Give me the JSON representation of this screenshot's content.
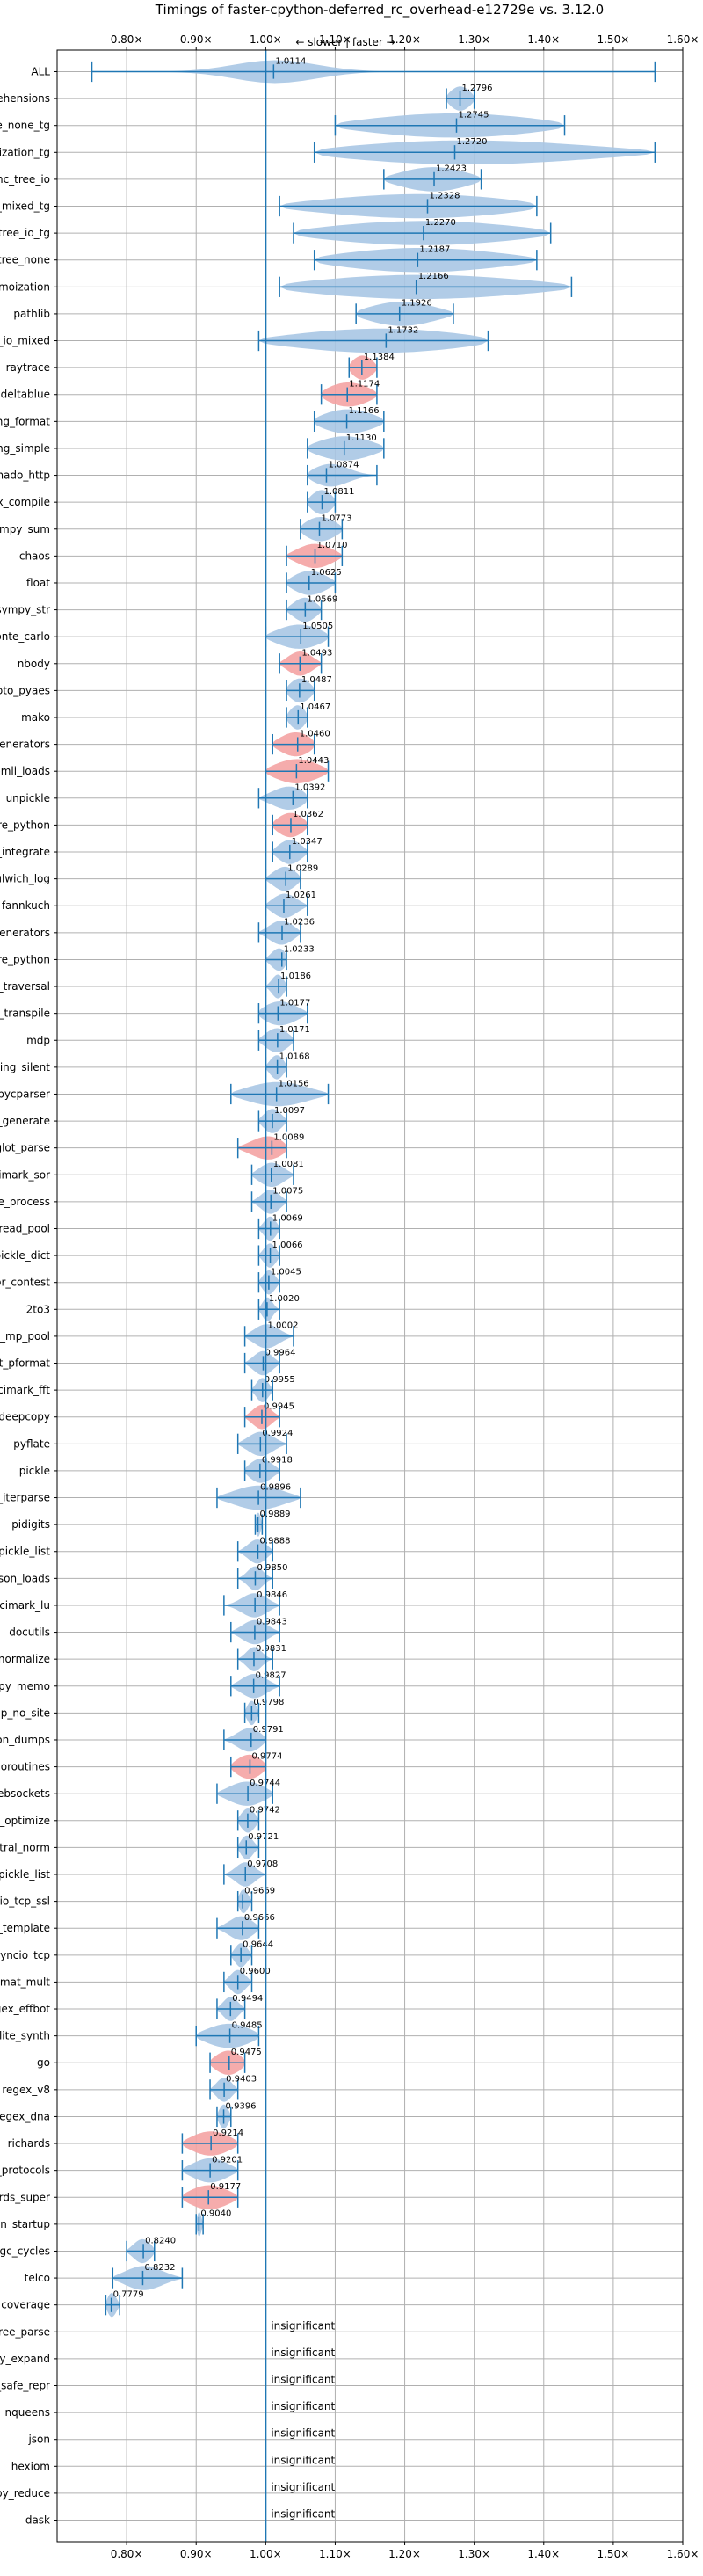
{
  "chart_data": {
    "type": "violin",
    "title": "Timings of faster-cpython-deferred_rc_overhead-e12729e vs. 3.12.0",
    "subtitle": "← slower | faster →",
    "xlim": [
      0.7,
      1.6
    ],
    "grid": true,
    "xticks": [
      {
        "v": 0.8,
        "label": "0.80×"
      },
      {
        "v": 0.9,
        "label": "0.90×"
      },
      {
        "v": 1.0,
        "label": "1.00×"
      },
      {
        "v": 1.1,
        "label": "1.10×"
      },
      {
        "v": 1.2,
        "label": "1.20×"
      },
      {
        "v": 1.3,
        "label": "1.30×"
      },
      {
        "v": 1.4,
        "label": "1.40×"
      },
      {
        "v": 1.5,
        "label": "1.50×"
      },
      {
        "v": 1.6,
        "label": "1.60×"
      }
    ],
    "insignificant_label": "insignificant",
    "benchmarks": [
      {
        "name": "ALL",
        "value": 1.0114,
        "label": "1.0114",
        "min": 0.75,
        "max": 1.56,
        "spread": 0.06,
        "color": "blue"
      },
      {
        "name": "comprehensions",
        "value": 1.2796,
        "label": "1.2796",
        "min": 1.26,
        "max": 1.3,
        "spread": 0.02,
        "color": "blue"
      },
      {
        "name": "async_tree_none_tg",
        "value": 1.2745,
        "label": "1.2745",
        "min": 1.1,
        "max": 1.43,
        "spread": 0.16,
        "color": "blue"
      },
      {
        "name": "async_tree_memoization_tg",
        "value": 1.272,
        "label": "1.2720",
        "min": 1.07,
        "max": 1.56,
        "spread": 0.22,
        "color": "blue"
      },
      {
        "name": "async_tree_io",
        "value": 1.2423,
        "label": "1.2423",
        "min": 1.17,
        "max": 1.31,
        "spread": 0.06,
        "color": "blue"
      },
      {
        "name": "async_tree_cpu_io_mixed_tg",
        "value": 1.2328,
        "label": "1.2328",
        "min": 1.02,
        "max": 1.39,
        "spread": 0.18,
        "color": "blue"
      },
      {
        "name": "async_tree_io_tg",
        "value": 1.227,
        "label": "1.2270",
        "min": 1.04,
        "max": 1.41,
        "spread": 0.18,
        "color": "blue"
      },
      {
        "name": "async_tree_none",
        "value": 1.2187,
        "label": "1.2187",
        "min": 1.07,
        "max": 1.39,
        "spread": 0.15,
        "color": "blue"
      },
      {
        "name": "async_tree_memoization",
        "value": 1.2166,
        "label": "1.2166",
        "min": 1.02,
        "max": 1.44,
        "spread": 0.2,
        "color": "blue"
      },
      {
        "name": "pathlib",
        "value": 1.1926,
        "label": "1.1926",
        "min": 1.13,
        "max": 1.27,
        "spread": 0.06,
        "color": "blue"
      },
      {
        "name": "async_tree_cpu_io_mixed",
        "value": 1.1732,
        "label": "1.1732",
        "min": 0.99,
        "max": 1.32,
        "spread": 0.16,
        "color": "blue"
      },
      {
        "name": "raytrace",
        "value": 1.1384,
        "label": "1.1384",
        "min": 1.12,
        "max": 1.16,
        "spread": 0.02,
        "color": "red"
      },
      {
        "name": "deltablue",
        "value": 1.1174,
        "label": "1.1174",
        "min": 1.08,
        "max": 1.16,
        "spread": 0.04,
        "color": "red"
      },
      {
        "name": "logging_format",
        "value": 1.1166,
        "label": "1.1166",
        "min": 1.07,
        "max": 1.17,
        "spread": 0.05,
        "color": "blue"
      },
      {
        "name": "logging_simple",
        "value": 1.113,
        "label": "1.1130",
        "min": 1.06,
        "max": 1.17,
        "spread": 0.05,
        "color": "blue"
      },
      {
        "name": "tornado_http",
        "value": 1.0874,
        "label": "1.0874",
        "min": 1.06,
        "max": 1.16,
        "spread": 0.03,
        "color": "blue"
      },
      {
        "name": "regex_compile",
        "value": 1.0811,
        "label": "1.0811",
        "min": 1.06,
        "max": 1.1,
        "spread": 0.02,
        "color": "blue"
      },
      {
        "name": "sympy_sum",
        "value": 1.0773,
        "label": "1.0773",
        "min": 1.05,
        "max": 1.11,
        "spread": 0.03,
        "color": "blue"
      },
      {
        "name": "chaos",
        "value": 1.071,
        "label": "1.0710",
        "min": 1.03,
        "max": 1.11,
        "spread": 0.03,
        "color": "red"
      },
      {
        "name": "float",
        "value": 1.0625,
        "label": "1.0625",
        "min": 1.03,
        "max": 1.1,
        "spread": 0.03,
        "color": "blue"
      },
      {
        "name": "sympy_str",
        "value": 1.0569,
        "label": "1.0569",
        "min": 1.03,
        "max": 1.08,
        "spread": 0.02,
        "color": "blue"
      },
      {
        "name": "scimark_monte_carlo",
        "value": 1.0505,
        "label": "1.0505",
        "min": 1.0,
        "max": 1.09,
        "spread": 0.04,
        "color": "blue"
      },
      {
        "name": "nbody",
        "value": 1.0493,
        "label": "1.0493",
        "min": 1.02,
        "max": 1.08,
        "spread": 0.02,
        "color": "red"
      },
      {
        "name": "crypto_pyaes",
        "value": 1.0487,
        "label": "1.0487",
        "min": 1.03,
        "max": 1.07,
        "spread": 0.02,
        "color": "blue"
      },
      {
        "name": "mako",
        "value": 1.0467,
        "label": "1.0467",
        "min": 1.03,
        "max": 1.06,
        "spread": 0.015,
        "color": "blue"
      },
      {
        "name": "generators",
        "value": 1.046,
        "label": "1.0460",
        "min": 1.01,
        "max": 1.07,
        "spread": 0.03,
        "color": "red"
      },
      {
        "name": "tomli_loads",
        "value": 1.0443,
        "label": "1.0443",
        "min": 1.0,
        "max": 1.09,
        "spread": 0.04,
        "color": "red"
      },
      {
        "name": "unpickle",
        "value": 1.0392,
        "label": "1.0392",
        "min": 0.99,
        "max": 1.06,
        "spread": 0.03,
        "color": "blue"
      },
      {
        "name": "pickle_pure_python",
        "value": 1.0362,
        "label": "1.0362",
        "min": 1.01,
        "max": 1.06,
        "spread": 0.025,
        "color": "red"
      },
      {
        "name": "sympy_integrate",
        "value": 1.0347,
        "label": "1.0347",
        "min": 1.01,
        "max": 1.06,
        "spread": 0.02,
        "color": "blue"
      },
      {
        "name": "dulwich_log",
        "value": 1.0289,
        "label": "1.0289",
        "min": 1.0,
        "max": 1.05,
        "spread": 0.02,
        "color": "blue"
      },
      {
        "name": "fannkuch",
        "value": 1.0261,
        "label": "1.0261",
        "min": 1.0,
        "max": 1.06,
        "spread": 0.02,
        "color": "blue"
      },
      {
        "name": "async_generators",
        "value": 1.0236,
        "label": "1.0236",
        "min": 0.99,
        "max": 1.05,
        "spread": 0.02,
        "color": "blue"
      },
      {
        "name": "unpickle_pure_python",
        "value": 1.0233,
        "label": "1.0233",
        "min": 1.0,
        "max": 1.03,
        "spread": 0.015,
        "color": "blue"
      },
      {
        "name": "gc_traversal",
        "value": 1.0186,
        "label": "1.0186",
        "min": 1.0,
        "max": 1.03,
        "spread": 0.01,
        "color": "blue"
      },
      {
        "name": "sqlglot_transpile",
        "value": 1.0177,
        "label": "1.0177",
        "min": 0.99,
        "max": 1.06,
        "spread": 0.03,
        "color": "blue"
      },
      {
        "name": "mdp",
        "value": 1.0171,
        "label": "1.0171",
        "min": 0.99,
        "max": 1.04,
        "spread": 0.02,
        "color": "blue"
      },
      {
        "name": "logging_silent",
        "value": 1.0168,
        "label": "1.0168",
        "min": 1.0,
        "max": 1.03,
        "spread": 0.012,
        "color": "blue"
      },
      {
        "name": "pycparser",
        "value": 1.0156,
        "label": "1.0156",
        "min": 0.95,
        "max": 1.09,
        "spread": 0.05,
        "color": "blue"
      },
      {
        "name": "xml_etree_generate",
        "value": 1.0097,
        "label": "1.0097",
        "min": 0.99,
        "max": 1.03,
        "spread": 0.015,
        "color": "blue"
      },
      {
        "name": "sqlglot_parse",
        "value": 1.0089,
        "label": "1.0089",
        "min": 0.96,
        "max": 1.03,
        "spread": 0.03,
        "color": "red"
      },
      {
        "name": "scimark_sor",
        "value": 1.0081,
        "label": "1.0081",
        "min": 0.98,
        "max": 1.04,
        "spread": 0.02,
        "color": "blue"
      },
      {
        "name": "xml_etree_process",
        "value": 1.0075,
        "label": "1.0075",
        "min": 0.98,
        "max": 1.03,
        "spread": 0.015,
        "color": "blue"
      },
      {
        "name": "bench_thread_pool",
        "value": 1.0069,
        "label": "1.0069",
        "min": 0.99,
        "max": 1.02,
        "spread": 0.01,
        "color": "blue"
      },
      {
        "name": "pickle_dict",
        "value": 1.0066,
        "label": "1.0066",
        "min": 0.99,
        "max": 1.02,
        "spread": 0.01,
        "color": "blue"
      },
      {
        "name": "meteor_contest",
        "value": 1.0045,
        "label": "1.0045",
        "min": 0.99,
        "max": 1.02,
        "spread": 0.01,
        "color": "blue"
      },
      {
        "name": "2to3",
        "value": 1.002,
        "label": "1.0020",
        "min": 0.99,
        "max": 1.02,
        "spread": 0.008,
        "color": "blue"
      },
      {
        "name": "bench_mp_pool",
        "value": 1.0002,
        "label": "1.0002",
        "min": 0.97,
        "max": 1.04,
        "spread": 0.02,
        "color": "blue"
      },
      {
        "name": "pprint_pformat",
        "value": 0.9964,
        "label": "0.9964",
        "min": 0.97,
        "max": 1.02,
        "spread": 0.015,
        "color": "blue"
      },
      {
        "name": "scimark_fft",
        "value": 0.9955,
        "label": "0.9955",
        "min": 0.98,
        "max": 1.01,
        "spread": 0.01,
        "color": "blue"
      },
      {
        "name": "deepcopy",
        "value": 0.9945,
        "label": "0.9945",
        "min": 0.97,
        "max": 1.02,
        "spread": 0.015,
        "color": "red"
      },
      {
        "name": "pyflate",
        "value": 0.9924,
        "label": "0.9924",
        "min": 0.96,
        "max": 1.03,
        "spread": 0.02,
        "color": "blue"
      },
      {
        "name": "pickle",
        "value": 0.9918,
        "label": "0.9918",
        "min": 0.97,
        "max": 1.02,
        "spread": 0.02,
        "color": "blue"
      },
      {
        "name": "xml_etree_iterparse",
        "value": 0.9896,
        "label": "0.9896",
        "min": 0.93,
        "max": 1.05,
        "spread": 0.04,
        "color": "blue"
      },
      {
        "name": "pidigits",
        "value": 0.9889,
        "label": "0.9889",
        "min": 0.985,
        "max": 0.995,
        "spread": 0.004,
        "color": "blue"
      },
      {
        "name": "pickle_list",
        "value": 0.9888,
        "label": "0.9888",
        "min": 0.96,
        "max": 1.01,
        "spread": 0.015,
        "color": "blue"
      },
      {
        "name": "json_loads",
        "value": 0.985,
        "label": "0.9850",
        "min": 0.96,
        "max": 1.01,
        "spread": 0.012,
        "color": "blue"
      },
      {
        "name": "scimark_lu",
        "value": 0.9846,
        "label": "0.9846",
        "min": 0.94,
        "max": 1.02,
        "spread": 0.02,
        "color": "blue"
      },
      {
        "name": "docutils",
        "value": 0.9843,
        "label": "0.9843",
        "min": 0.95,
        "max": 1.02,
        "spread": 0.02,
        "color": "blue"
      },
      {
        "name": "sqlglot_normalize",
        "value": 0.9831,
        "label": "0.9831",
        "min": 0.96,
        "max": 1.01,
        "spread": 0.012,
        "color": "blue"
      },
      {
        "name": "deepcopy_memo",
        "value": 0.9827,
        "label": "0.9827",
        "min": 0.95,
        "max": 1.02,
        "spread": 0.02,
        "color": "blue"
      },
      {
        "name": "python_startup_no_site",
        "value": 0.9798,
        "label": "0.9798",
        "min": 0.97,
        "max": 0.99,
        "spread": 0.008,
        "color": "blue"
      },
      {
        "name": "json_dumps",
        "value": 0.9791,
        "label": "0.9791",
        "min": 0.94,
        "max": 1.0,
        "spread": 0.02,
        "color": "blue"
      },
      {
        "name": "coroutines",
        "value": 0.9774,
        "label": "0.9774",
        "min": 0.95,
        "max": 1.0,
        "spread": 0.025,
        "color": "red"
      },
      {
        "name": "asyncio_websockets",
        "value": 0.9744,
        "label": "0.9744",
        "min": 0.93,
        "max": 1.01,
        "spread": 0.03,
        "color": "blue"
      },
      {
        "name": "sqlglot_optimize",
        "value": 0.9742,
        "label": "0.9742",
        "min": 0.96,
        "max": 0.99,
        "spread": 0.012,
        "color": "blue"
      },
      {
        "name": "spectral_norm",
        "value": 0.9721,
        "label": "0.9721",
        "min": 0.96,
        "max": 0.99,
        "spread": 0.01,
        "color": "blue"
      },
      {
        "name": "unpickle_list",
        "value": 0.9708,
        "label": "0.9708",
        "min": 0.94,
        "max": 1.0,
        "spread": 0.015,
        "color": "blue"
      },
      {
        "name": "asyncio_tcp_ssl",
        "value": 0.9669,
        "label": "0.9669",
        "min": 0.96,
        "max": 0.98,
        "spread": 0.008,
        "color": "blue"
      },
      {
        "name": "django_template",
        "value": 0.9666,
        "label": "0.9666",
        "min": 0.93,
        "max": 0.99,
        "spread": 0.02,
        "color": "blue"
      },
      {
        "name": "asyncio_tcp",
        "value": 0.9644,
        "label": "0.9644",
        "min": 0.95,
        "max": 0.98,
        "spread": 0.01,
        "color": "blue"
      },
      {
        "name": "scimark_sparse_mat_mult",
        "value": 0.96,
        "label": "0.9600",
        "min": 0.94,
        "max": 0.98,
        "spread": 0.012,
        "color": "blue"
      },
      {
        "name": "regex_effbot",
        "value": 0.9494,
        "label": "0.9494",
        "min": 0.93,
        "max": 0.97,
        "spread": 0.012,
        "color": "blue"
      },
      {
        "name": "sqlite_synth",
        "value": 0.9485,
        "label": "0.9485",
        "min": 0.9,
        "max": 0.99,
        "spread": 0.04,
        "color": "blue"
      },
      {
        "name": "go",
        "value": 0.9475,
        "label": "0.9475",
        "min": 0.92,
        "max": 0.97,
        "spread": 0.025,
        "color": "red"
      },
      {
        "name": "regex_v8",
        "value": 0.9403,
        "label": "0.9403",
        "min": 0.92,
        "max": 0.96,
        "spread": 0.012,
        "color": "blue"
      },
      {
        "name": "regex_dna",
        "value": 0.9396,
        "label": "0.9396",
        "min": 0.93,
        "max": 0.95,
        "spread": 0.008,
        "color": "blue"
      },
      {
        "name": "richards",
        "value": 0.9214,
        "label": "0.9214",
        "min": 0.88,
        "max": 0.96,
        "spread": 0.035,
        "color": "red"
      },
      {
        "name": "typing_runtime_protocols",
        "value": 0.9201,
        "label": "0.9201",
        "min": 0.88,
        "max": 0.96,
        "spread": 0.03,
        "color": "blue"
      },
      {
        "name": "richards_super",
        "value": 0.9177,
        "label": "0.9177",
        "min": 0.88,
        "max": 0.96,
        "spread": 0.035,
        "color": "red"
      },
      {
        "name": "python_startup",
        "value": 0.904,
        "label": "0.9040",
        "min": 0.9,
        "max": 0.91,
        "spread": 0.004,
        "color": "blue"
      },
      {
        "name": "create_gc_cycles",
        "value": 0.824,
        "label": "0.8240",
        "min": 0.8,
        "max": 0.84,
        "spread": 0.015,
        "color": "blue"
      },
      {
        "name": "telco",
        "value": 0.8232,
        "label": "0.8232",
        "min": 0.78,
        "max": 0.88,
        "spread": 0.03,
        "color": "blue"
      },
      {
        "name": "coverage",
        "value": 0.7779,
        "label": "0.7779",
        "min": 0.77,
        "max": 0.79,
        "spread": 0.008,
        "color": "blue"
      },
      {
        "name": "xml_etree_parse",
        "insignificant": true
      },
      {
        "name": "sympy_expand",
        "insignificant": true
      },
      {
        "name": "pprint_safe_repr",
        "insignificant": true
      },
      {
        "name": "nqueens",
        "insignificant": true
      },
      {
        "name": "json",
        "insignificant": true
      },
      {
        "name": "hexiom",
        "insignificant": true
      },
      {
        "name": "deepcopy_reduce",
        "insignificant": true
      },
      {
        "name": "dask",
        "insignificant": true
      }
    ],
    "colors": {
      "line": "#1f77b4",
      "blue_fill": "#a9c6e4",
      "red_fill": "#f4a3a3"
    }
  }
}
